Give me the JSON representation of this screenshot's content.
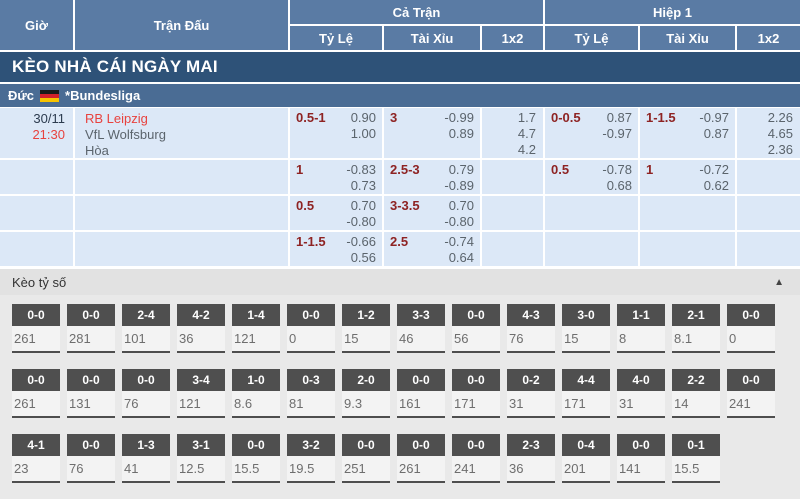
{
  "table_header": {
    "time": "Giờ",
    "match": "Trận Đấu",
    "full_time": "Cả Trận",
    "first_half": "Hiệp 1",
    "handicap": "Tỷ Lệ",
    "over_under": "Tài Xỉu",
    "one_x_two": "1x2"
  },
  "banner": {
    "title": "KÈO NHÀ CÁI NGÀY MAI"
  },
  "league": {
    "country": "Đức",
    "flag_icon": "germany-flag",
    "name": "*Bundesliga"
  },
  "match": {
    "date": "30/11",
    "time": "21:30",
    "home_team": "RB Leipzig",
    "away_team": "VfL Wolfsburg",
    "draw_label": "Hòa"
  },
  "odds_rows": [
    {
      "ft_hdp": {
        "line": "0.5-1",
        "top": "0.90",
        "bottom": "1.00"
      },
      "ft_ou": {
        "line": "3",
        "top": "-0.99",
        "bottom": "0.89"
      },
      "ft_1x2": {
        "home": "1.7",
        "draw": "4.7",
        "away": "4.2"
      },
      "h1_hdp": {
        "line": "0-0.5",
        "top": "0.87",
        "bottom": "-0.97"
      },
      "h1_ou": {
        "line": "1-1.5",
        "top": "-0.97",
        "bottom": "0.87"
      },
      "h1_1x2": {
        "home": "2.26",
        "draw": "4.65",
        "away": "2.36"
      }
    },
    {
      "ft_hdp": {
        "line": "1",
        "top": "-0.83",
        "bottom": "0.73"
      },
      "ft_ou": {
        "line": "2.5-3",
        "top": "0.79",
        "bottom": "-0.89"
      },
      "ft_1x2": null,
      "h1_hdp": {
        "line": "0.5",
        "top": "-0.78",
        "bottom": "0.68"
      },
      "h1_ou": {
        "line": "1",
        "top": "-0.72",
        "bottom": "0.62"
      },
      "h1_1x2": null
    },
    {
      "ft_hdp": {
        "line": "0.5",
        "top": "0.70",
        "bottom": "-0.80"
      },
      "ft_ou": {
        "line": "3-3.5",
        "top": "0.70",
        "bottom": "-0.80"
      },
      "ft_1x2": null,
      "h1_hdp": null,
      "h1_ou": null,
      "h1_1x2": null
    },
    {
      "ft_hdp": {
        "line": "1-1.5",
        "top": "-0.66",
        "bottom": "0.56"
      },
      "ft_ou": {
        "line": "2.5",
        "top": "-0.74",
        "bottom": "0.64"
      },
      "ft_1x2": null,
      "h1_hdp": null,
      "h1_ou": null,
      "h1_1x2": null
    }
  ],
  "score_section": {
    "title": "Kèo tỷ số",
    "collapse_icon": "▲",
    "rows": [
      [
        {
          "score": "0-0",
          "value": "261"
        },
        {
          "score": "0-0",
          "value": "281"
        },
        {
          "score": "2-4",
          "value": "101"
        },
        {
          "score": "4-2",
          "value": "36"
        },
        {
          "score": "1-4",
          "value": "121"
        },
        {
          "score": "0-0",
          "value": "0"
        },
        {
          "score": "1-2",
          "value": "15"
        },
        {
          "score": "3-3",
          "value": "46"
        },
        {
          "score": "0-0",
          "value": "56"
        },
        {
          "score": "4-3",
          "value": "76"
        },
        {
          "score": "3-0",
          "value": "15"
        },
        {
          "score": "1-1",
          "value": "8"
        },
        {
          "score": "2-1",
          "value": "8.1"
        },
        {
          "score": "0-0",
          "value": "0"
        }
      ],
      [
        {
          "score": "0-0",
          "value": "261"
        },
        {
          "score": "0-0",
          "value": "131"
        },
        {
          "score": "0-0",
          "value": "76"
        },
        {
          "score": "3-4",
          "value": "121"
        },
        {
          "score": "1-0",
          "value": "8.6"
        },
        {
          "score": "0-3",
          "value": "81"
        },
        {
          "score": "2-0",
          "value": "9.3"
        },
        {
          "score": "0-0",
          "value": "161"
        },
        {
          "score": "0-0",
          "value": "171"
        },
        {
          "score": "0-2",
          "value": "31"
        },
        {
          "score": "4-4",
          "value": "171"
        },
        {
          "score": "4-0",
          "value": "31"
        },
        {
          "score": "2-2",
          "value": "14"
        },
        {
          "score": "0-0",
          "value": "241"
        }
      ],
      [
        {
          "score": "4-1",
          "value": "23"
        },
        {
          "score": "0-0",
          "value": "76"
        },
        {
          "score": "1-3",
          "value": "41"
        },
        {
          "score": "3-1",
          "value": "12.5"
        },
        {
          "score": "0-0",
          "value": "15.5"
        },
        {
          "score": "3-2",
          "value": "19.5"
        },
        {
          "score": "0-0",
          "value": "251"
        },
        {
          "score": "0-0",
          "value": "261"
        },
        {
          "score": "0-0",
          "value": "241"
        },
        {
          "score": "2-3",
          "value": "36"
        },
        {
          "score": "0-4",
          "value": "201"
        },
        {
          "score": "0-0",
          "value": "141"
        },
        {
          "score": "0-1",
          "value": "15.5"
        },
        null
      ]
    ]
  },
  "colors": {
    "header_blue": "#5a7ba4",
    "banner_blue": "#2e5278",
    "league_blue": "#4a6c94",
    "odds_row_bg": "#dce8f7",
    "handicap_maroon": "#8e2323",
    "highlight_red": "#e8423e",
    "score_box_gray": "#4f4f4f",
    "section_bg_gray": "#e9e9e9"
  }
}
